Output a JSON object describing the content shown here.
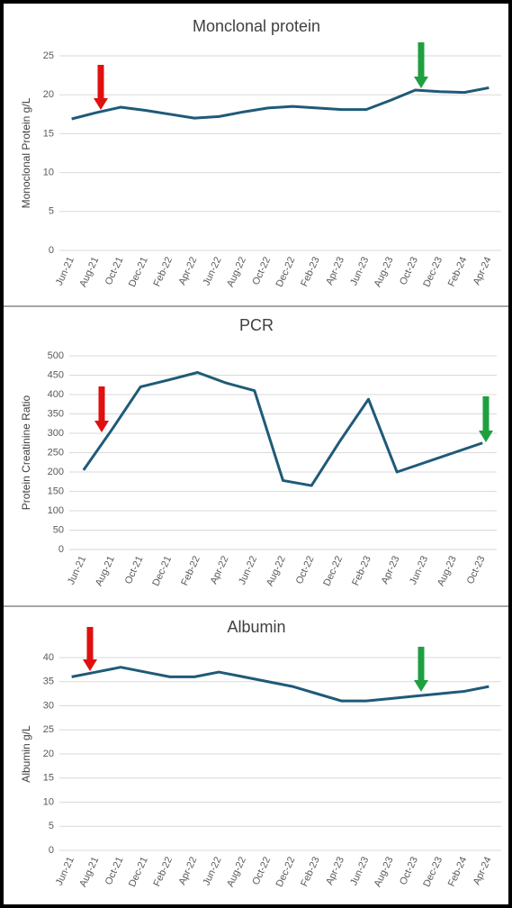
{
  "chart_data": [
    {
      "type": "line",
      "title": "Monclonal protein",
      "ylabel": "Monoclonal Protein g/L",
      "categories": [
        "Jun-21",
        "Aug-21",
        "Oct-21",
        "Dec-21",
        "Feb-22",
        "Apr-22",
        "Jun-22",
        "Aug-22",
        "Oct-22",
        "Dec-22",
        "Feb-23",
        "Apr-23",
        "Jun-23",
        "Aug-23",
        "Oct-23",
        "Dec-23",
        "Feb-24",
        "Apr-24"
      ],
      "values": [
        16.9,
        17.7,
        18.4,
        18.0,
        17.5,
        17.0,
        17.2,
        17.8,
        18.3,
        18.5,
        18.3,
        18.1,
        18.1,
        19.3,
        20.6,
        20.4,
        20.3,
        20.9
      ],
      "color": "#1f5a78",
      "ylim": [
        0,
        25
      ],
      "yticks": [
        0,
        5,
        10,
        15,
        20,
        25
      ],
      "grid": true
    },
    {
      "type": "line",
      "title": "PCR",
      "ylabel": "Protein Creatinine Ratio",
      "categories": [
        "Jun-21",
        "Aug-21",
        "Oct-21",
        "Dec-21",
        "Feb-22",
        "Apr-22",
        "Jun-22",
        "Aug-22",
        "Oct-22",
        "Dec-22",
        "Feb-23",
        "Apr-23",
        "Jun-23",
        "Aug-23",
        "Oct-23"
      ],
      "values": [
        205,
        310,
        420,
        438,
        457,
        430,
        410,
        178,
        165,
        280,
        388,
        200,
        225,
        250,
        275
      ],
      "color": "#1f5a78",
      "ylim": [
        0,
        500
      ],
      "yticks": [
        0,
        50,
        100,
        150,
        200,
        250,
        300,
        350,
        400,
        450,
        500
      ],
      "grid": true
    },
    {
      "type": "line",
      "title": "Albumin",
      "ylabel": "Albumin g/L",
      "categories": [
        "Jun-21",
        "Aug-21",
        "Oct-21",
        "Dec-21",
        "Feb-22",
        "Apr-22",
        "Jun-22",
        "Aug-22",
        "Oct-22",
        "Dec-22",
        "Feb-23",
        "Apr-23",
        "Jun-23",
        "Aug-23",
        "Oct-23",
        "Dec-23",
        "Feb-24",
        "Apr-24"
      ],
      "values": [
        36,
        37,
        38,
        37,
        36,
        36,
        37,
        36,
        35,
        34,
        32.5,
        31,
        31,
        31.5,
        32,
        32.5,
        33,
        34
      ],
      "color": "#1f5a78",
      "ylim": [
        0,
        40
      ],
      "yticks": [
        0,
        5,
        10,
        15,
        20,
        25,
        30,
        35,
        40
      ],
      "grid": true
    }
  ]
}
